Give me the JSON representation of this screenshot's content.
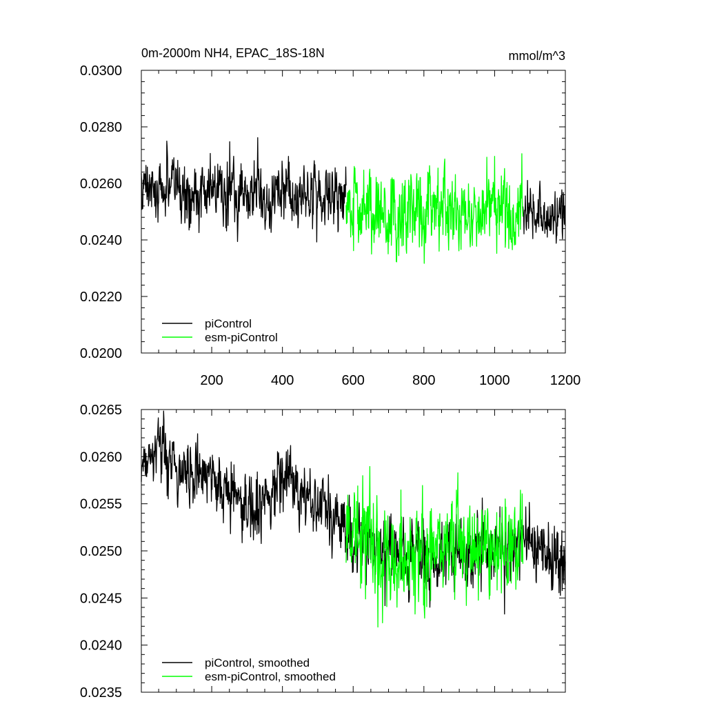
{
  "chart_data": [
    {
      "type": "line",
      "title": "0m-2000m NH4, EPAC_18S-18N",
      "units": "mmol/m^3",
      "xlim": [
        1,
        1200
      ],
      "ylim": [
        0.02,
        0.03
      ],
      "yticks": [
        "0.0200",
        "0.0220",
        "0.0240",
        "0.0260",
        "0.0280",
        "0.0300"
      ],
      "xticks": [
        "200",
        "400",
        "600",
        "800",
        "1000",
        "1200"
      ],
      "legend": {
        "placement": "bottom-left",
        "entries": [
          "piControl",
          "esm-piControl"
        ]
      },
      "series": [
        {
          "name": "piControl",
          "color": "#000000",
          "x_range": [
            1,
            1200
          ],
          "segments": [
            {
              "x": [
                1,
                100,
                200,
                300,
                400,
                500,
                580
              ],
              "y": [
                0.0259,
                0.0258,
                0.0257,
                0.0256,
                0.0256,
                0.0256,
                0.0253
              ],
              "spread": 0.00085
            },
            {
              "x": [
                1080,
                1200
              ],
              "y": [
                0.0249,
                0.0249
              ],
              "spread": 0.0008
            }
          ]
        },
        {
          "name": "esm-piControl",
          "color": "#00ff00",
          "x_range": [
            580,
            1080
          ],
          "segments": [
            {
              "x": [
                580,
                700,
                800,
                900,
                1000,
                1080
              ],
              "y": [
                0.0252,
                0.025,
                0.025,
                0.0249,
                0.025,
                0.025
              ],
              "spread": 0.0011
            }
          ]
        }
      ]
    },
    {
      "type": "line",
      "title": "",
      "xlim": [
        1,
        1200
      ],
      "ylim": [
        0.0235,
        0.0265
      ],
      "yticks": [
        "0.0235",
        "0.0240",
        "0.0245",
        "0.0250",
        "0.0255",
        "0.0260",
        "0.0265"
      ],
      "legend": {
        "placement": "bottom-left",
        "entries": [
          "piControl, smoothed",
          "esm-piControl, smoothed"
        ]
      },
      "series": [
        {
          "name": "piControl, smoothed",
          "color": "#000000",
          "x_range": [
            1,
            1200
          ],
          "segments": [
            {
              "x": [
                1,
                40,
                100,
                150,
                200,
                250,
                300,
                350,
                400,
                450,
                500,
                550,
                600,
                700,
                800,
                900,
                1000,
                1100,
                1200
              ],
              "y": [
                0.02595,
                0.02605,
                0.0259,
                0.0258,
                0.02575,
                0.0256,
                0.02545,
                0.0255,
                0.0258,
                0.02565,
                0.02555,
                0.02535,
                0.0251,
                0.02495,
                0.02495,
                0.025,
                0.02505,
                0.0251,
                0.02485
              ],
              "spread": 0.00028
            }
          ]
        },
        {
          "name": "esm-piControl, smoothed",
          "color": "#00ff00",
          "x_range": [
            580,
            1080
          ],
          "segments": [
            {
              "x": [
                580,
                650,
                700,
                800,
                900,
                1000,
                1080
              ],
              "y": [
                0.0254,
                0.02495,
                0.0249,
                0.02495,
                0.0251,
                0.02495,
                0.0251
              ],
              "spread": 0.0004
            }
          ]
        }
      ]
    }
  ]
}
